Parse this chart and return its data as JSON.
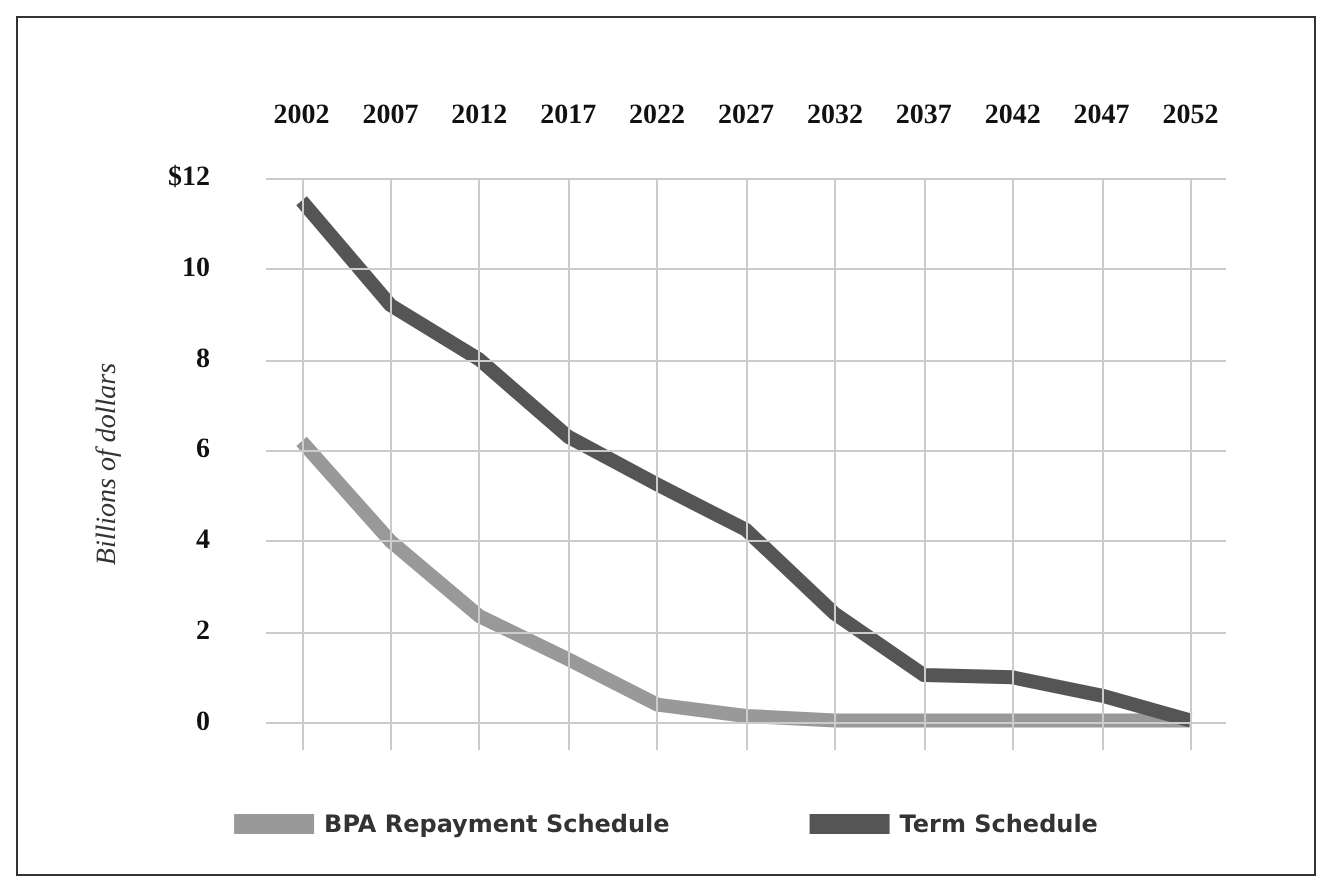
{
  "chart_data": {
    "type": "line",
    "ylabel": "Billions of dollars",
    "x": [
      2002,
      2007,
      2012,
      2017,
      2022,
      2027,
      2032,
      2037,
      2042,
      2047,
      2052
    ],
    "xlim": [
      2000,
      2054
    ],
    "xticks": [
      2002,
      2007,
      2012,
      2017,
      2022,
      2027,
      2032,
      2037,
      2042,
      2047,
      2052
    ],
    "ylim": [
      -0.6,
      12
    ],
    "yticks": [
      0,
      2,
      4,
      6,
      8,
      10,
      {
        "value": 12,
        "label": "$12"
      }
    ],
    "series": [
      {
        "name": "BPA Repayment Schedule",
        "color": "#999999",
        "values": [
          6.2,
          4.0,
          2.35,
          1.4,
          0.4,
          0.15,
          0.05,
          0.05,
          0.05,
          0.05,
          0.05
        ]
      },
      {
        "name": "Term Schedule",
        "color": "#555555",
        "values": [
          11.5,
          9.2,
          8.0,
          6.3,
          5.25,
          4.25,
          2.4,
          1.05,
          1.0,
          0.6,
          0.05
        ]
      }
    ],
    "grid": true,
    "legend": "bottom",
    "marker": "none",
    "line_style": "solid"
  }
}
